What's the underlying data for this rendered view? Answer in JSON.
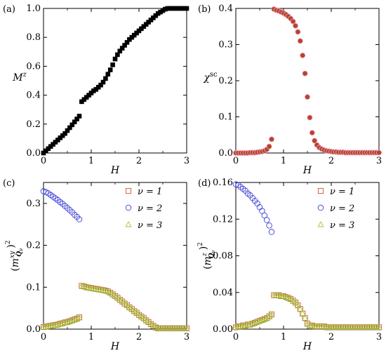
{
  "chart_data": [
    {
      "panel": "(a)",
      "type": "scatter",
      "xlabel": "H",
      "ylabel": "M^z",
      "xlim": [
        0,
        3
      ],
      "ylim": [
        0,
        1
      ],
      "xticks": [
        "0",
        "1",
        "2",
        "3"
      ],
      "yticks": [
        "0.0",
        "0.2",
        "0.4",
        "0.6",
        "0.8",
        "1.0"
      ],
      "series": [
        {
          "color": "#000000",
          "marker": "filled-square",
          "x": [
            0,
            0.05,
            0.1,
            0.15,
            0.2,
            0.25,
            0.3,
            0.35,
            0.4,
            0.45,
            0.5,
            0.55,
            0.6,
            0.65,
            0.7,
            0.75,
            0.8,
            0.85,
            0.9,
            0.95,
            1.0,
            1.05,
            1.1,
            1.15,
            1.2,
            1.25,
            1.3,
            1.35,
            1.4,
            1.45,
            1.5,
            1.55,
            1.6,
            1.65,
            1.7,
            1.75,
            1.8,
            1.85,
            1.9,
            1.95,
            2.0,
            2.05,
            2.1,
            2.15,
            2.2,
            2.25,
            2.3,
            2.35,
            2.4,
            2.45,
            2.5,
            2.55,
            2.6,
            2.65,
            2.7,
            2.75,
            2.8,
            2.85,
            2.9,
            2.95,
            3.0
          ],
          "y": [
            0,
            0.015,
            0.03,
            0.045,
            0.06,
            0.075,
            0.09,
            0.105,
            0.12,
            0.135,
            0.155,
            0.175,
            0.195,
            0.215,
            0.235,
            0.255,
            0.355,
            0.37,
            0.385,
            0.4,
            0.415,
            0.43,
            0.44,
            0.455,
            0.47,
            0.49,
            0.515,
            0.545,
            0.575,
            0.61,
            0.65,
            0.68,
            0.705,
            0.725,
            0.745,
            0.765,
            0.785,
            0.8,
            0.815,
            0.83,
            0.845,
            0.86,
            0.875,
            0.89,
            0.905,
            0.92,
            0.935,
            0.95,
            0.965,
            0.975,
            0.985,
            0.995,
            1.0,
            1.0,
            1.0,
            1.0,
            1.0,
            1.0,
            1.0,
            1.0,
            1.0
          ]
        }
      ]
    },
    {
      "panel": "(b)",
      "type": "scatter",
      "xlabel": "H",
      "ylabel": "χ^sc",
      "xlim": [
        0,
        3
      ],
      "ylim": [
        0,
        0.4
      ],
      "xticks": [
        "0",
        "1",
        "2",
        "3"
      ],
      "yticks": [
        "0.0",
        "0.1",
        "0.2",
        "0.3",
        "0.4"
      ],
      "series": [
        {
          "color": "#b5452a",
          "marker": "filled-circle",
          "x": [
            0,
            0.05,
            0.1,
            0.15,
            0.2,
            0.25,
            0.3,
            0.35,
            0.4,
            0.45,
            0.5,
            0.55,
            0.6,
            0.65,
            0.7,
            0.75,
            0.8,
            0.85,
            0.9,
            0.95,
            1.0,
            1.05,
            1.1,
            1.15,
            1.2,
            1.25,
            1.3,
            1.35,
            1.4,
            1.45,
            1.5,
            1.55,
            1.6,
            1.65,
            1.7,
            1.75,
            1.8,
            1.85,
            1.9,
            1.95,
            2.0,
            2.05,
            2.1,
            2.15,
            2.2,
            2.25,
            2.3,
            2.35,
            2.4,
            2.45,
            2.5,
            2.55,
            2.6,
            2.65,
            2.7,
            2.75,
            2.8,
            2.85,
            2.9,
            2.95,
            3.0
          ],
          "y": [
            0,
            0,
            0,
            0,
            0,
            0,
            0.001,
            0.001,
            0.001,
            0.002,
            0.003,
            0.004,
            0.006,
            0.01,
            0.018,
            0.038,
            0.398,
            0.395,
            0.393,
            0.39,
            0.387,
            0.383,
            0.378,
            0.372,
            0.364,
            0.352,
            0.335,
            0.31,
            0.27,
            0.22,
            0.155,
            0.098,
            0.056,
            0.034,
            0.022,
            0.015,
            0.011,
            0.008,
            0.006,
            0.005,
            0.004,
            0.003,
            0.003,
            0.002,
            0.002,
            0.002,
            0.001,
            0.001,
            0.001,
            0.001,
            0.001,
            0.001,
            0.001,
            0.001,
            0.001,
            0.001,
            0.001,
            0.001,
            0.001,
            0.001,
            0.001
          ]
        }
      ]
    },
    {
      "panel": "(c)",
      "type": "scatter",
      "xlabel": "H",
      "ylabel": "(m^xy_Qν)^2",
      "xlim": [
        0,
        3
      ],
      "ylim": [
        0,
        0.35
      ],
      "xticks": [
        "0",
        "1",
        "2",
        "3"
      ],
      "yticks": [
        "0.0",
        "0.1",
        "0.2",
        "0.3"
      ],
      "legend_position": "top-right",
      "x": [
        0,
        0.05,
        0.1,
        0.15,
        0.2,
        0.25,
        0.3,
        0.35,
        0.4,
        0.45,
        0.5,
        0.55,
        0.6,
        0.65,
        0.7,
        0.75,
        0.8,
        0.85,
        0.9,
        0.95,
        1.0,
        1.05,
        1.1,
        1.15,
        1.2,
        1.25,
        1.3,
        1.35,
        1.4,
        1.45,
        1.5,
        1.55,
        1.6,
        1.65,
        1.7,
        1.75,
        1.8,
        1.85,
        1.9,
        1.95,
        2.0,
        2.05,
        2.1,
        2.15,
        2.2,
        2.25,
        2.3,
        2.35,
        2.4,
        2.45,
        2.5,
        2.55,
        2.6,
        2.65,
        2.7,
        2.75,
        2.8,
        2.85,
        2.9,
        2.95,
        3.0
      ],
      "series": [
        {
          "name": "ν = 1",
          "color": "#d0503c",
          "marker": "open-square",
          "y": [
            0.005,
            0.006,
            0.007,
            0.008,
            0.009,
            0.01,
            0.011,
            0.013,
            0.014,
            0.016,
            0.017,
            0.019,
            0.021,
            0.023,
            0.025,
            0.028,
            0.103,
            0.102,
            0.1,
            0.099,
            0.098,
            0.097,
            0.096,
            0.095,
            0.094,
            0.093,
            0.092,
            0.09,
            0.087,
            0.083,
            0.079,
            0.075,
            0.07,
            0.066,
            0.061,
            0.057,
            0.052,
            0.048,
            0.043,
            0.039,
            0.034,
            0.03,
            0.026,
            0.021,
            0.017,
            0.012,
            0.008,
            0.004,
            0.002,
            0.002,
            0.002,
            0.002,
            0.002,
            0.002,
            0.002,
            0.002,
            0.002,
            0.002,
            0.002,
            0.002,
            0.002
          ]
        },
        {
          "name": "ν = 2",
          "color": "#4040d8",
          "marker": "open-circle",
          "x_max": 0.75,
          "y": [
            0.329,
            0.327,
            0.324,
            0.32,
            0.316,
            0.312,
            0.308,
            0.303,
            0.299,
            0.294,
            0.289,
            0.284,
            0.279,
            0.273,
            0.268,
            0.262
          ]
        },
        {
          "name": "ν = 3",
          "color": "#9acd32",
          "marker": "open-triangle",
          "y": [
            0.005,
            0.006,
            0.007,
            0.008,
            0.009,
            0.01,
            0.011,
            0.013,
            0.014,
            0.016,
            0.017,
            0.019,
            0.021,
            0.023,
            0.025,
            0.028,
            0.103,
            0.102,
            0.1,
            0.099,
            0.098,
            0.097,
            0.096,
            0.095,
            0.094,
            0.093,
            0.092,
            0.09,
            0.087,
            0.083,
            0.079,
            0.075,
            0.07,
            0.066,
            0.061,
            0.057,
            0.052,
            0.048,
            0.043,
            0.039,
            0.034,
            0.03,
            0.026,
            0.021,
            0.017,
            0.012,
            0.008,
            0.004,
            0.002,
            0.002,
            0.002,
            0.002,
            0.002,
            0.002,
            0.002,
            0.002,
            0.002,
            0.002,
            0.002,
            0.002,
            0.002
          ]
        }
      ]
    },
    {
      "panel": "(d)",
      "type": "scatter",
      "xlabel": "H",
      "ylabel": "(m^z_Qν)^2",
      "xlim": [
        0,
        3
      ],
      "ylim": [
        0,
        0.16
      ],
      "xticks": [
        "0",
        "1",
        "2",
        "3"
      ],
      "yticks": [
        "0.00",
        "0.04",
        "0.08",
        "0.12",
        "0.16"
      ],
      "legend_position": "top-right",
      "x": [
        0,
        0.05,
        0.1,
        0.15,
        0.2,
        0.25,
        0.3,
        0.35,
        0.4,
        0.45,
        0.5,
        0.55,
        0.6,
        0.65,
        0.7,
        0.75,
        0.8,
        0.85,
        0.9,
        0.95,
        1.0,
        1.05,
        1.1,
        1.15,
        1.2,
        1.25,
        1.3,
        1.35,
        1.4,
        1.45,
        1.5,
        1.55,
        1.6,
        1.65,
        1.7,
        1.75,
        1.8,
        1.85,
        1.9,
        1.95,
        2.0,
        2.05,
        2.1,
        2.15,
        2.2,
        2.25,
        2.3,
        2.35,
        2.4,
        2.45,
        2.5,
        2.55,
        2.6,
        2.65,
        2.7,
        2.75,
        2.8,
        2.85,
        2.9,
        2.95,
        3.0
      ],
      "series": [
        {
          "name": "ν = 1",
          "color": "#d0503c",
          "marker": "open-square",
          "y": [
            0.002,
            0.003,
            0.003,
            0.004,
            0.004,
            0.005,
            0.005,
            0.006,
            0.007,
            0.008,
            0.009,
            0.01,
            0.011,
            0.012,
            0.014,
            0.016,
            0.037,
            0.037,
            0.037,
            0.036,
            0.036,
            0.035,
            0.034,
            0.033,
            0.031,
            0.029,
            0.026,
            0.022,
            0.017,
            0.012,
            0.006,
            0.004,
            0.004,
            0.003,
            0.003,
            0.003,
            0.003,
            0.003,
            0.002,
            0.002,
            0.002,
            0.002,
            0.002,
            0.002,
            0.002,
            0.002,
            0.002,
            0.002,
            0.002,
            0.002,
            0.002,
            0.002,
            0.002,
            0.002,
            0.002,
            0.002,
            0.002,
            0.002,
            0.002,
            0.002,
            0.002
          ]
        },
        {
          "name": "ν = 2",
          "color": "#4040d8",
          "marker": "open-circle",
          "x_max": 0.75,
          "y": [
            0.158,
            0.157,
            0.155,
            0.153,
            0.151,
            0.148,
            0.146,
            0.143,
            0.14,
            0.137,
            0.133,
            0.129,
            0.124,
            0.119,
            0.113,
            0.106
          ]
        },
        {
          "name": "ν = 3",
          "color": "#9acd32",
          "marker": "open-triangle",
          "y": [
            0.002,
            0.003,
            0.003,
            0.004,
            0.004,
            0.005,
            0.005,
            0.006,
            0.007,
            0.008,
            0.009,
            0.01,
            0.011,
            0.012,
            0.014,
            0.016,
            0.037,
            0.037,
            0.037,
            0.036,
            0.036,
            0.035,
            0.034,
            0.033,
            0.031,
            0.029,
            0.026,
            0.022,
            0.017,
            0.012,
            0.006,
            0.004,
            0.004,
            0.003,
            0.003,
            0.003,
            0.003,
            0.003,
            0.002,
            0.002,
            0.002,
            0.002,
            0.002,
            0.002,
            0.002,
            0.002,
            0.002,
            0.002,
            0.002,
            0.002,
            0.002,
            0.002,
            0.002,
            0.002,
            0.002,
            0.002,
            0.002,
            0.002,
            0.002,
            0.002,
            0.002
          ]
        }
      ]
    }
  ]
}
